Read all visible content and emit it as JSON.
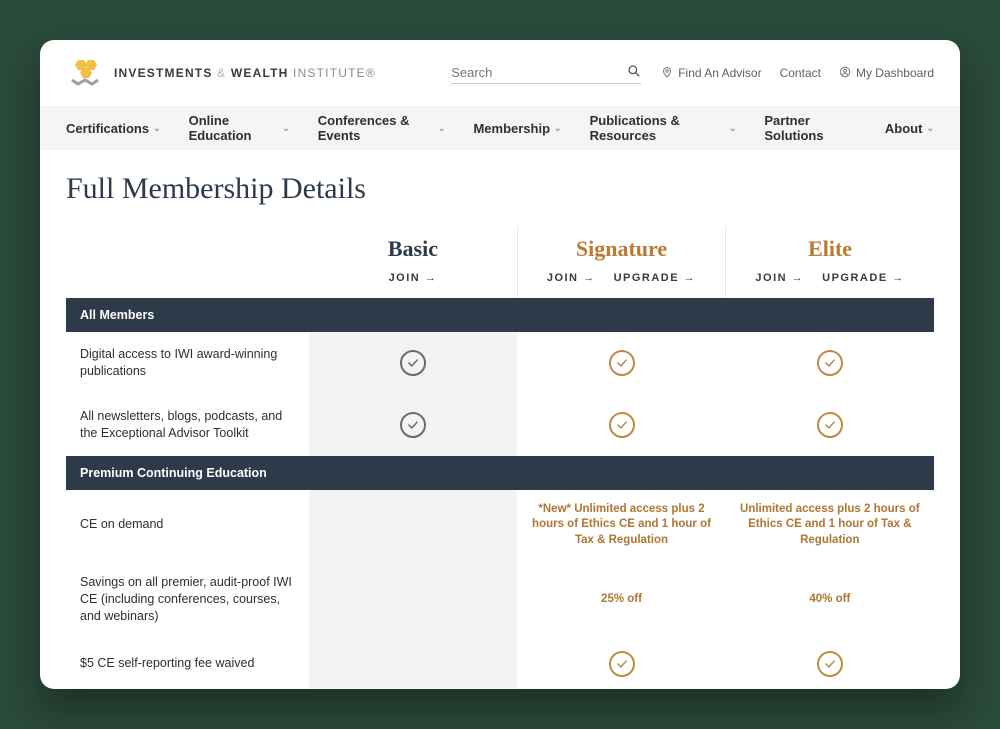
{
  "brand": {
    "text_strong": "INVESTMENTS",
    "text_amp": "&",
    "text_mid": "WEALTH",
    "text_light": "INSTITUTE",
    "reg": "®",
    "hex_gold": "#f2c044",
    "hex_gray": "#9aa0a6"
  },
  "search": {
    "placeholder": "Search"
  },
  "util": {
    "find": "Find An Advisor",
    "contact": "Contact",
    "dashboard": "My Dashboard"
  },
  "nav": {
    "items": [
      "Certifications",
      "Online Education",
      "Conferences & Events",
      "Membership",
      "Publications & Resources",
      "Partner Solutions",
      "About"
    ]
  },
  "page": {
    "title": "Full Membership Details"
  },
  "plans": {
    "basic": {
      "name": "Basic",
      "join": "JOIN",
      "upgrade": ""
    },
    "signature": {
      "name": "Signature",
      "join": "JOIN",
      "upgrade": "UPGRADE"
    },
    "elite": {
      "name": "Elite",
      "join": "JOIN",
      "upgrade": "UPGRADE"
    },
    "arrow": "→"
  },
  "sections": {
    "s1": "All Members",
    "s2": "Premium Continuing Education"
  },
  "rows": {
    "r1": {
      "label": "Digital access to IWI award-winning publications",
      "basic": "check-gray",
      "signature": "check-gold",
      "elite": "check-gold"
    },
    "r2": {
      "label": "All newsletters, blogs, podcasts, and the Exceptional Advisor Toolkit",
      "basic": "check-gray",
      "signature": "check-gold",
      "elite": "check-gold"
    },
    "r3": {
      "label": "CE on demand",
      "basic": "",
      "signature": "*New* Unlimited access plus 2 hours of Ethics CE and 1 hour of Tax & Regulation",
      "elite": "Unlimited access plus 2 hours of Ethics CE and 1 hour of Tax & Regulation"
    },
    "r4": {
      "label": "Savings on all premier, audit-proof IWI CE (including conferences, courses, and webinars)",
      "basic": "",
      "signature": "25% off",
      "elite": "40% off"
    },
    "r5": {
      "label": "$5 CE self-reporting fee waived",
      "basic": "",
      "signature": "check-gold",
      "elite": "check-gold"
    }
  },
  "colors": {
    "section_bg": "#2d3a4a",
    "accent": "#bb7a34",
    "basic_col_bg": "#f3f3f3",
    "page_bg": "#ffffff",
    "outer_bg": "#2a4a3a"
  }
}
